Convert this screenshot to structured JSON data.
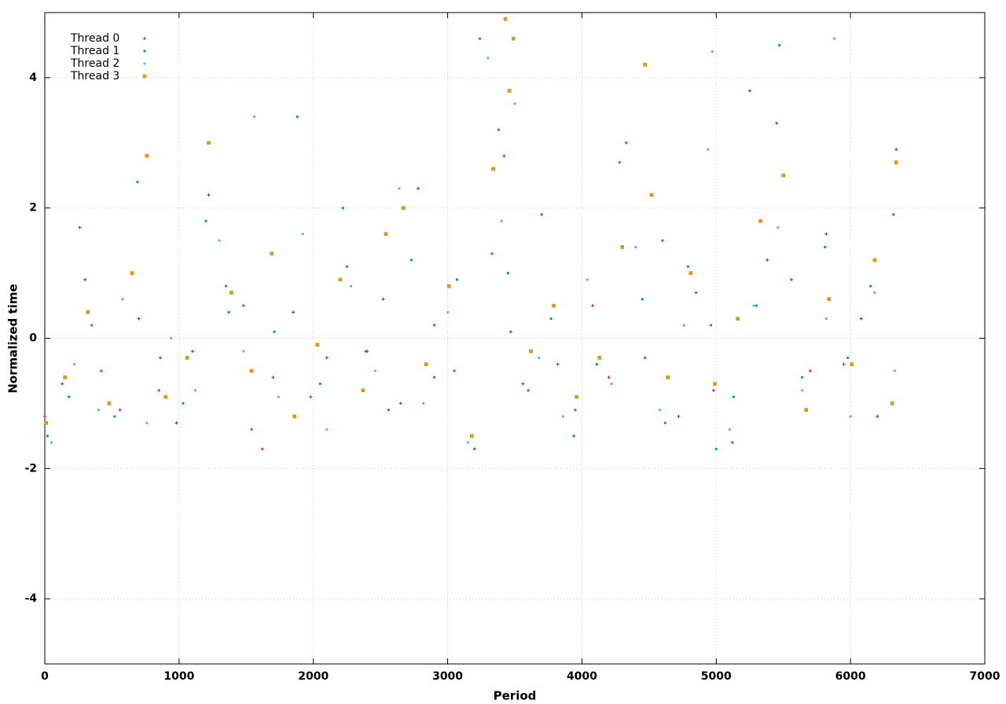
{
  "chart_data": {
    "type": "scatter",
    "x_label": "Period",
    "y_label": "Normalized time",
    "xlim": [
      0,
      7000
    ],
    "xticks": [
      0,
      1000,
      2000,
      3000,
      4000,
      5000,
      6000,
      7000
    ],
    "ylim": [
      -5,
      5
    ],
    "yticks": [
      -4,
      -2,
      0,
      2,
      4
    ],
    "grid": true,
    "legend": "top-left",
    "series": [
      {
        "name": "Thread 0",
        "color": "#9400d3",
        "marker": "plus",
        "x": [
          0,
          130,
          260,
          300,
          420,
          560,
          700,
          850,
          980,
          1100,
          1220,
          1350,
          1480,
          1620,
          1700,
          1850,
          1980,
          2100,
          2250,
          2400,
          2520,
          2650,
          2780,
          2900,
          3050,
          3200,
          3330,
          3420,
          3470,
          3560,
          3700,
          3820,
          3950,
          4080,
          4200,
          4330,
          4470,
          4600,
          4720,
          4850,
          4980,
          5120,
          5250,
          5380,
          5450,
          5560,
          5700,
          5820,
          5950,
          6080,
          6200,
          6340
        ],
        "values": [
          -1.2,
          -0.7,
          1.7,
          0.9,
          -0.5,
          -1.1,
          0.3,
          -0.8,
          -1.3,
          -0.2,
          2.2,
          0.8,
          0.5,
          -1.7,
          -0.6,
          0.4,
          -0.9,
          -0.3,
          1.1,
          -0.2,
          0.6,
          -1.0,
          2.3,
          0.2,
          -0.5,
          -1.7,
          1.3,
          2.8,
          0.1,
          -0.7,
          1.9,
          -0.4,
          -1.1,
          0.5,
          -0.6,
          3.0,
          -0.3,
          1.5,
          -1.2,
          0.7,
          -0.8,
          -1.6,
          3.8,
          1.2,
          3.3,
          0.9,
          -0.5,
          1.6,
          -0.4,
          0.3,
          -1.2,
          2.9
        ]
      },
      {
        "name": "Thread 1",
        "color": "#009e73",
        "marker": "dot",
        "x": [
          20,
          180,
          350,
          520,
          690,
          860,
          1030,
          1200,
          1370,
          1540,
          1710,
          1880,
          2050,
          2220,
          2390,
          2560,
          2730,
          2900,
          3070,
          3240,
          3380,
          3450,
          3600,
          3770,
          3940,
          4110,
          4280,
          4450,
          4620,
          4790,
          4960,
          5000,
          5130,
          5300,
          5470,
          5640,
          5810,
          5980,
          6150,
          6320
        ],
        "values": [
          -1.5,
          -0.9,
          0.2,
          -1.2,
          2.4,
          -0.3,
          -1.0,
          1.8,
          0.4,
          -1.4,
          0.1,
          3.4,
          -0.7,
          2.0,
          -0.2,
          -1.1,
          1.2,
          -0.6,
          0.9,
          4.6,
          3.2,
          1.0,
          -0.8,
          0.3,
          -1.5,
          -0.4,
          2.7,
          0.6,
          -1.3,
          1.1,
          0.2,
          -1.7,
          -0.9,
          0.5,
          4.5,
          -0.6,
          1.4,
          -0.3,
          0.8,
          1.9
        ]
      },
      {
        "name": "Thread 2",
        "color": "#56b4e9",
        "marker": "dot",
        "x": [
          50,
          220,
          400,
          580,
          760,
          940,
          1120,
          1300,
          1480,
          1560,
          1740,
          1920,
          2100,
          2280,
          2460,
          2640,
          2820,
          3000,
          3150,
          3300,
          3400,
          3500,
          3680,
          3860,
          4040,
          4220,
          4400,
          4580,
          4760,
          4940,
          4970,
          5100,
          5280,
          5460,
          5640,
          5820,
          5880,
          6000,
          6180,
          6330
        ],
        "values": [
          -1.6,
          -0.4,
          -1.1,
          0.6,
          -1.3,
          0.0,
          -0.8,
          1.5,
          -0.2,
          3.4,
          -0.9,
          1.6,
          -1.4,
          0.8,
          -0.5,
          2.3,
          -1.0,
          0.4,
          -1.6,
          4.3,
          1.8,
          3.6,
          -0.3,
          -1.2,
          0.9,
          -0.7,
          1.4,
          -1.1,
          0.2,
          2.9,
          4.4,
          -1.4,
          0.5,
          1.7,
          -0.8,
          0.3,
          4.6,
          -1.2,
          0.7,
          -0.5
        ]
      },
      {
        "name": "Thread 3",
        "color": "#e69f00",
        "marker": "square",
        "x": [
          10,
          150,
          320,
          480,
          650,
          760,
          900,
          1060,
          1220,
          1390,
          1540,
          1690,
          1860,
          2030,
          2200,
          2370,
          2540,
          2670,
          2840,
          3010,
          3180,
          3340,
          3430,
          3460,
          3490,
          3620,
          3790,
          3960,
          4130,
          4300,
          4470,
          4520,
          4640,
          4810,
          4990,
          5160,
          5330,
          5500,
          5670,
          5840,
          6010,
          6180,
          6310,
          6340
        ],
        "values": [
          -1.3,
          -0.6,
          0.4,
          -1.0,
          1.0,
          2.8,
          -0.9,
          -0.3,
          3.0,
          0.7,
          -0.5,
          1.3,
          -1.2,
          -0.1,
          0.9,
          -0.8,
          1.6,
          2.0,
          -0.4,
          0.8,
          -1.5,
          2.6,
          4.9,
          3.8,
          4.6,
          -0.2,
          0.5,
          -0.9,
          -0.3,
          1.4,
          4.2,
          2.2,
          -0.6,
          1.0,
          -0.7,
          0.3,
          1.8,
          2.5,
          -1.1,
          0.6,
          -0.4,
          1.2,
          -1.0,
          2.7
        ]
      }
    ]
  }
}
